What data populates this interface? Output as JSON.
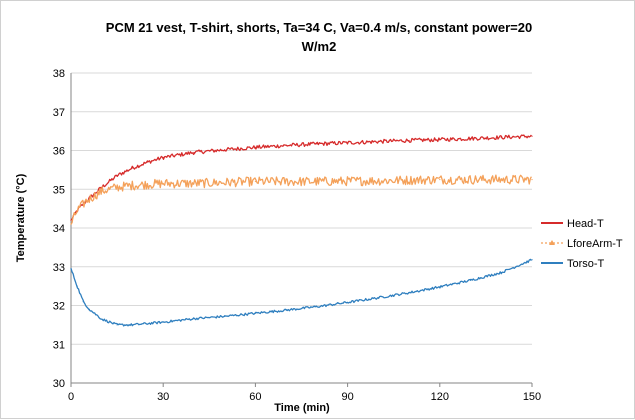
{
  "chart_data": {
    "type": "line",
    "title_lines": [
      "PCM 21 vest, T-shirt, shorts, Ta=34 C,  Va=0.4 m/s, constant power=20",
      "W/m2"
    ],
    "xlabel": "Time (min)",
    "ylabel": "Temperature (°C)",
    "xlim": [
      0,
      150
    ],
    "ylim": [
      30,
      38
    ],
    "xticks": [
      0,
      30,
      60,
      90,
      120,
      150
    ],
    "yticks": [
      30,
      31,
      32,
      33,
      34,
      35,
      36,
      37,
      38
    ],
    "grid": "horizontal",
    "legend": "right",
    "series": [
      {
        "name": "Head-T",
        "color": "#d62b2b",
        "marker": "none",
        "noise": 0.05,
        "x": [
          0,
          2,
          5,
          10,
          15,
          20,
          25,
          30,
          40,
          50,
          60,
          70,
          80,
          90,
          100,
          110,
          120,
          130,
          140,
          150
        ],
        "values": [
          34.2,
          34.45,
          34.7,
          35.05,
          35.35,
          35.55,
          35.7,
          35.82,
          35.95,
          36.02,
          36.08,
          36.13,
          36.17,
          36.2,
          36.23,
          36.26,
          36.28,
          36.31,
          36.34,
          36.37
        ]
      },
      {
        "name": "LforeArm-T",
        "color": "#f4a15a",
        "marker": "triangle",
        "noise": 0.12,
        "x": [
          0,
          2,
          5,
          10,
          15,
          20,
          30,
          40,
          60,
          80,
          100,
          120,
          150
        ],
        "values": [
          34.1,
          34.45,
          34.7,
          34.95,
          35.05,
          35.1,
          35.15,
          35.15,
          35.2,
          35.2,
          35.22,
          35.25,
          35.25
        ]
      },
      {
        "name": "Torso-T",
        "color": "#2f7fbf",
        "marker": "none",
        "noise": 0.03,
        "x": [
          0,
          2,
          4,
          6,
          10,
          15,
          20,
          30,
          40,
          50,
          60,
          70,
          80,
          90,
          100,
          110,
          120,
          130,
          140,
          150
        ],
        "values": [
          32.95,
          32.5,
          32.1,
          31.9,
          31.65,
          31.5,
          31.5,
          31.57,
          31.66,
          31.72,
          31.8,
          31.88,
          31.97,
          32.08,
          32.2,
          32.33,
          32.48,
          32.65,
          32.85,
          33.18
        ]
      }
    ]
  }
}
